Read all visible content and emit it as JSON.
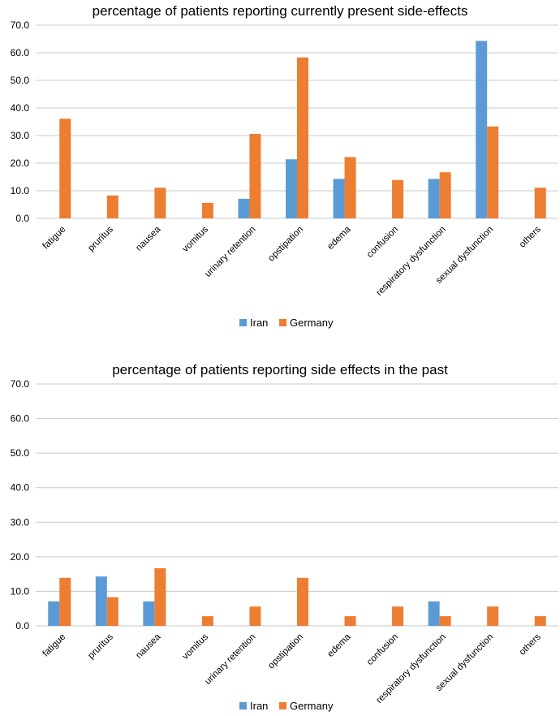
{
  "chart_data": [
    {
      "type": "bar",
      "title": "percentage of patients reporting currently present side-effects",
      "categories": [
        "fatigue",
        "pruritus",
        "nausea",
        "vomitus",
        "urinary retention",
        "opstipation",
        "edema",
        "confusion",
        "respiratory dysfunction",
        "sexual dysfunction",
        "others"
      ],
      "series": [
        {
          "name": "Iran",
          "color": "#5b9bd5",
          "values": [
            0,
            0,
            0,
            0,
            7.1,
            21.4,
            14.3,
            0,
            14.3,
            64.3,
            0
          ]
        },
        {
          "name": "Germany",
          "color": "#ed7d31",
          "values": [
            36.1,
            8.3,
            11.1,
            5.6,
            30.6,
            58.3,
            22.2,
            13.9,
            16.7,
            33.3,
            11.1
          ]
        }
      ],
      "yticks": [
        "0.0",
        "10.0",
        "20.0",
        "30.0",
        "40.0",
        "50.0",
        "60.0",
        "70.0"
      ],
      "ylim": [
        0,
        70
      ],
      "xlabel": "",
      "ylabel": "",
      "grid": true,
      "legend": "bottom"
    },
    {
      "type": "bar",
      "title": "percentage of patients reporting side effects in the past",
      "categories": [
        "fatigue",
        "pruritus",
        "nausea",
        "vomitus",
        "urinary retention",
        "opstipation",
        "edema",
        "confusion",
        "respiratory dysfunction",
        "sexual dysfunction",
        "others"
      ],
      "series": [
        {
          "name": "Iran",
          "color": "#5b9bd5",
          "values": [
            7.1,
            14.3,
            7.1,
            0,
            0,
            0,
            0,
            0,
            7.1,
            0,
            0
          ]
        },
        {
          "name": "Germany",
          "color": "#ed7d31",
          "values": [
            13.9,
            8.3,
            16.7,
            2.8,
            5.6,
            13.9,
            2.8,
            5.6,
            2.8,
            5.6,
            2.8
          ]
        }
      ],
      "yticks": [
        "0.0",
        "10.0",
        "20.0",
        "30.0",
        "40.0",
        "50.0",
        "60.0",
        "70.0"
      ],
      "ylim": [
        0,
        70
      ],
      "xlabel": "",
      "ylabel": "",
      "grid": true,
      "legend": "bottom"
    }
  ]
}
